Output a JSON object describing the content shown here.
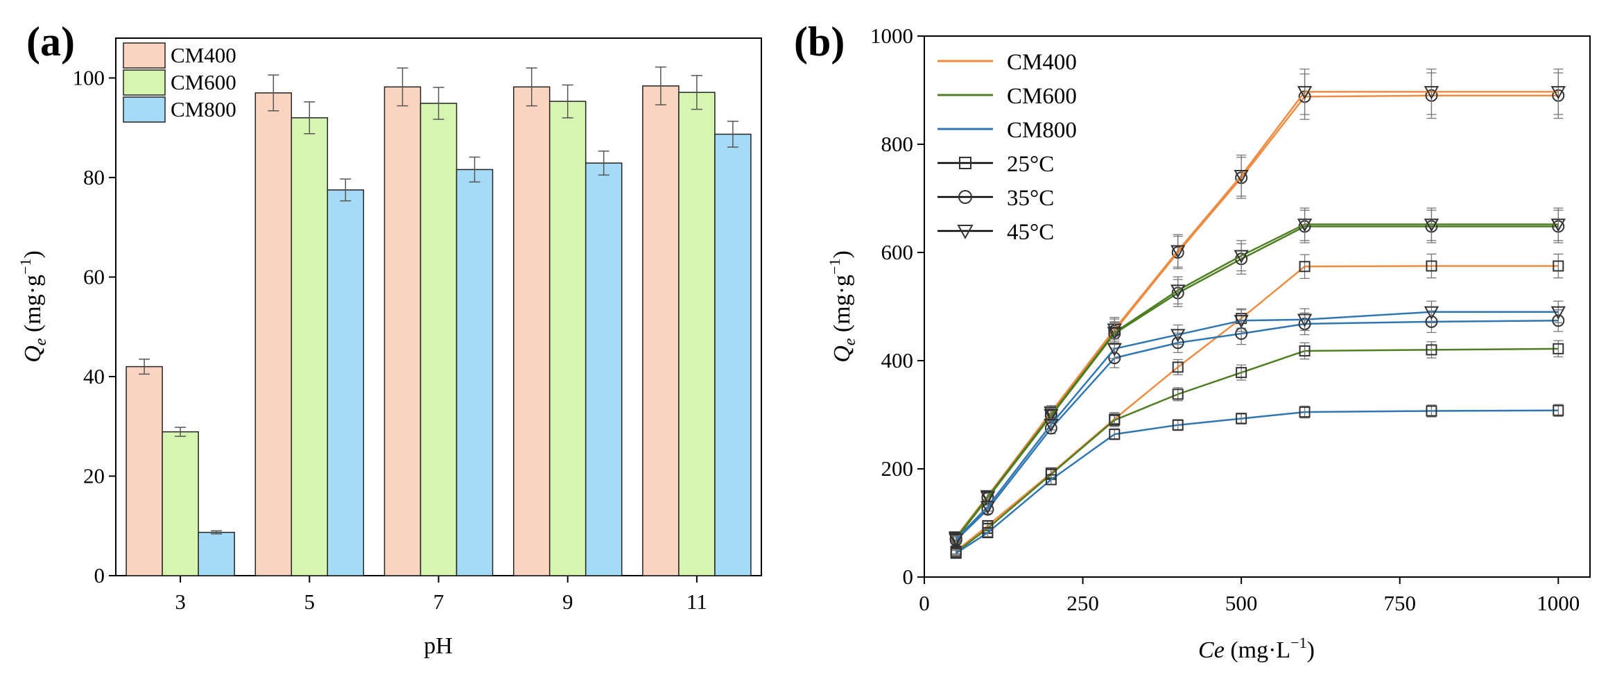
{
  "chart_data": [
    {
      "panel_label": "(a)",
      "type": "bar",
      "xlabel": "pH",
      "ylabel_main": "Q",
      "ylabel_sub": "e",
      "ylabel_unit": " (mg·g",
      "ylabel_sup": "−1",
      "ylabel_close": ")",
      "ylim": [
        0,
        108
      ],
      "yticks": [
        0,
        20,
        40,
        60,
        80,
        100
      ],
      "categories": [
        "3",
        "5",
        "7",
        "9",
        "11"
      ],
      "series": [
        {
          "name": "CM400",
          "color": "#f9d5c1",
          "values": [
            42.0,
            97.0,
            98.2,
            98.2,
            98.4
          ],
          "errors": [
            1.5,
            3.6,
            3.8,
            3.8,
            3.8
          ]
        },
        {
          "name": "CM600",
          "color": "#d6f5b0",
          "values": [
            28.9,
            92.0,
            94.9,
            95.3,
            97.1
          ],
          "errors": [
            0.9,
            3.2,
            3.2,
            3.3,
            3.4
          ]
        },
        {
          "name": "CM800",
          "color": "#a6dbf7",
          "values": [
            8.7,
            77.5,
            81.6,
            82.9,
            88.7
          ],
          "errors": [
            0.3,
            2.2,
            2.5,
            2.4,
            2.6
          ]
        }
      ],
      "legend": "top-left",
      "grid": false
    },
    {
      "panel_label": "(b)",
      "type": "line",
      "xlabel_main": "Ce",
      "xlabel_unit": " (mg·L",
      "xlabel_sup": "−1",
      "xlabel_close": ")",
      "ylabel_main": "Q",
      "ylabel_sub": "e",
      "ylabel_unit": " (mg·g",
      "ylabel_sup": "−1",
      "ylabel_close": ")",
      "xlim": [
        0,
        1050
      ],
      "ylim": [
        0,
        1000
      ],
      "xticks": [
        0,
        250,
        500,
        750,
        1000
      ],
      "yticks": [
        0,
        200,
        400,
        600,
        800,
        1000
      ],
      "x": [
        50,
        100,
        200,
        300,
        400,
        500,
        600,
        800,
        1000
      ],
      "legend": "top-left",
      "grid": false,
      "legend_colors": [
        {
          "name": "CM400",
          "color": "#ed8b40"
        },
        {
          "name": "CM600",
          "color": "#4f7e22"
        },
        {
          "name": "CM800",
          "color": "#2f76b3"
        }
      ],
      "legend_markers": [
        {
          "name": "25°C",
          "marker": "square"
        },
        {
          "name": "35°C",
          "marker": "circle"
        },
        {
          "name": "45°C",
          "marker": "triangle-down"
        }
      ],
      "series": [
        {
          "material": "CM400",
          "temp": "25°C",
          "marker": "square",
          "color": "#ed8b40",
          "values": [
            48,
            95,
            192,
            292,
            388,
            478,
            574,
            575,
            575
          ],
          "errors": [
            5,
            8,
            10,
            12,
            14,
            18,
            22,
            22,
            22
          ]
        },
        {
          "material": "CM400",
          "temp": "35°C",
          "marker": "circle",
          "color": "#ed8b40",
          "values": [
            72,
            148,
            302,
            455,
            600,
            738,
            888,
            890,
            890
          ],
          "errors": [
            6,
            9,
            12,
            22,
            30,
            38,
            42,
            42,
            42
          ]
        },
        {
          "material": "CM400",
          "temp": "45°C",
          "marker": "triangle-down",
          "color": "#ed8b40",
          "values": [
            74,
            150,
            305,
            458,
            603,
            742,
            897,
            897,
            897
          ],
          "errors": [
            6,
            9,
            12,
            22,
            30,
            38,
            42,
            42,
            42
          ]
        },
        {
          "material": "CM600",
          "temp": "25°C",
          "marker": "square",
          "color": "#4f7e22",
          "values": [
            46,
            90,
            190,
            290,
            338,
            378,
            418,
            420,
            422
          ],
          "errors": [
            5,
            8,
            10,
            12,
            12,
            14,
            15,
            15,
            15
          ]
        },
        {
          "material": "CM600",
          "temp": "35°C",
          "marker": "circle",
          "color": "#4f7e22",
          "values": [
            70,
            146,
            298,
            450,
            525,
            588,
            648,
            648,
            648
          ],
          "errors": [
            6,
            9,
            12,
            20,
            25,
            28,
            30,
            30,
            30
          ]
        },
        {
          "material": "CM600",
          "temp": "45°C",
          "marker": "triangle-down",
          "color": "#4f7e22",
          "values": [
            72,
            148,
            300,
            452,
            530,
            594,
            652,
            652,
            652
          ],
          "errors": [
            6,
            9,
            12,
            20,
            25,
            28,
            30,
            30,
            30
          ]
        },
        {
          "material": "CM800",
          "temp": "25°C",
          "marker": "square",
          "color": "#2f76b3",
          "values": [
            44,
            82,
            180,
            264,
            281,
            293,
            305,
            307,
            308
          ],
          "errors": [
            5,
            7,
            9,
            10,
            10,
            10,
            11,
            11,
            11
          ]
        },
        {
          "material": "CM800",
          "temp": "35°C",
          "marker": "circle",
          "color": "#2f76b3",
          "values": [
            68,
            125,
            275,
            405,
            433,
            450,
            468,
            472,
            474
          ],
          "errors": [
            6,
            8,
            10,
            18,
            18,
            20,
            20,
            20,
            20
          ]
        },
        {
          "material": "CM800",
          "temp": "45°C",
          "marker": "triangle-down",
          "color": "#2f76b3",
          "values": [
            70,
            130,
            282,
            422,
            448,
            474,
            476,
            490,
            490
          ],
          "errors": [
            6,
            8,
            10,
            18,
            18,
            20,
            20,
            20,
            20
          ]
        }
      ]
    }
  ]
}
